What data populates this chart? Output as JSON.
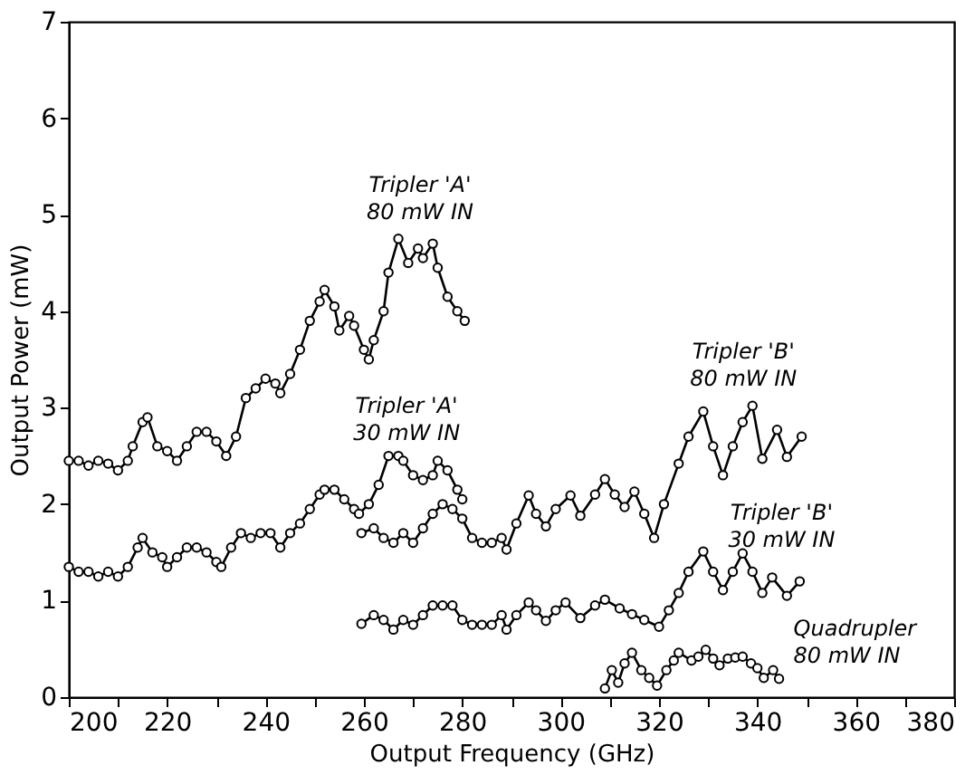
{
  "chart_data": {
    "type": "line",
    "xlabel": "Output Frequency (GHz)",
    "ylabel": "Output Power (mW)",
    "xlim": [
      200,
      380
    ],
    "ylim": [
      0,
      7
    ],
    "xticks": [
      200,
      {
        "value": 210,
        "label": null
      },
      220,
      {
        "value": 230,
        "label": null
      },
      240,
      {
        "value": 250,
        "label": null
      },
      260,
      {
        "value": 270,
        "label": null
      },
      280,
      {
        "value": 290,
        "label": null
      },
      300,
      {
        "value": 310,
        "label": null
      },
      320,
      {
        "value": 330,
        "label": null
      },
      340,
      {
        "value": 350,
        "label": null
      },
      360,
      {
        "value": 370,
        "label": null
      },
      380
    ],
    "yticks": [
      0,
      1,
      2,
      3,
      4,
      5,
      6,
      7
    ],
    "grid": false,
    "legend": false,
    "marker": "circle",
    "line_style": "solid",
    "series": [
      {
        "name": "Tripler 'A'\n80 mW IN",
        "color": "#000000",
        "x": [
          200,
          202,
          204,
          206,
          208,
          210,
          212,
          213,
          215,
          216,
          218,
          220,
          222,
          224,
          226,
          228,
          230,
          232,
          234,
          236,
          238,
          240,
          242,
          243,
          245,
          247,
          249,
          251,
          252,
          254,
          255,
          257,
          258,
          260,
          261,
          262,
          264,
          265,
          267,
          269,
          271,
          272,
          274,
          275,
          277,
          279,
          280.5
        ],
        "values": [
          2.45,
          2.45,
          2.4,
          2.45,
          2.42,
          2.35,
          2.45,
          2.6,
          2.85,
          2.9,
          2.6,
          2.55,
          2.45,
          2.6,
          2.75,
          2.75,
          2.65,
          2.5,
          2.7,
          3.1,
          3.2,
          3.3,
          3.25,
          3.15,
          3.35,
          3.6,
          3.9,
          4.1,
          4.22,
          4.05,
          3.8,
          3.95,
          3.85,
          3.6,
          3.5,
          3.7,
          4.0,
          4.4,
          4.75,
          4.5,
          4.65,
          4.55,
          4.7,
          4.45,
          4.15,
          4.0,
          3.9
        ]
      },
      {
        "name": "Tripler 'A'\n30 mW IN",
        "color": "#000000",
        "x": [
          200,
          202,
          204,
          206,
          208,
          210,
          212,
          214,
          215,
          217,
          219,
          220,
          222,
          224,
          226,
          228,
          230,
          231,
          233,
          235,
          237,
          239,
          241,
          243,
          245,
          247,
          249,
          251,
          252,
          254,
          256,
          258,
          259,
          261,
          263,
          265,
          267,
          268,
          270,
          272,
          274,
          275,
          277,
          279,
          280
        ],
        "values": [
          1.35,
          1.3,
          1.3,
          1.25,
          1.3,
          1.25,
          1.35,
          1.55,
          1.65,
          1.5,
          1.45,
          1.35,
          1.45,
          1.55,
          1.55,
          1.5,
          1.4,
          1.35,
          1.55,
          1.7,
          1.65,
          1.7,
          1.7,
          1.55,
          1.7,
          1.8,
          1.95,
          2.1,
          2.15,
          2.15,
          2.05,
          1.95,
          1.9,
          2.0,
          2.2,
          2.5,
          2.5,
          2.45,
          2.3,
          2.25,
          2.3,
          2.45,
          2.35,
          2.15,
          2.05
        ]
      },
      {
        "name": "Tripler 'B'\n80 mW IN",
        "color": "#000000",
        "x": [
          259.5,
          262,
          264,
          266,
          268,
          270,
          272,
          274,
          276,
          278,
          280,
          282,
          284,
          286,
          288,
          289,
          291,
          293.5,
          295,
          297,
          299,
          302,
          304,
          307,
          309,
          311,
          313,
          315,
          317,
          319,
          321,
          324,
          326,
          329,
          331,
          333,
          335,
          337,
          339,
          341,
          344,
          346,
          349
        ],
        "values": [
          1.7,
          1.75,
          1.65,
          1.6,
          1.7,
          1.6,
          1.75,
          1.9,
          2.0,
          1.95,
          1.85,
          1.65,
          1.6,
          1.6,
          1.65,
          1.53,
          1.8,
          2.09,
          1.9,
          1.77,
          1.95,
          2.09,
          1.88,
          2.1,
          2.26,
          2.1,
          1.97,
          2.13,
          1.9,
          1.65,
          2.0,
          2.42,
          2.7,
          2.96,
          2.6,
          2.3,
          2.6,
          2.85,
          3.02,
          2.47,
          2.77,
          2.49,
          2.7
        ]
      },
      {
        "name": "Tripler 'B'\n30 mW IN",
        "color": "#000000",
        "x": [
          259.5,
          262,
          264,
          266,
          268,
          270,
          272,
          274,
          276,
          278,
          280,
          282,
          284,
          286,
          288,
          289,
          291,
          293.5,
          295,
          297,
          299,
          301,
          304,
          307,
          309,
          312,
          314.5,
          317,
          320,
          322,
          324,
          326,
          329,
          331,
          333,
          335,
          337,
          339,
          341,
          343,
          346,
          348.6
        ],
        "values": [
          0.76,
          0.85,
          0.8,
          0.7,
          0.8,
          0.75,
          0.85,
          0.95,
          0.95,
          0.95,
          0.8,
          0.75,
          0.75,
          0.75,
          0.85,
          0.7,
          0.85,
          0.98,
          0.9,
          0.79,
          0.9,
          0.98,
          0.82,
          0.95,
          1.01,
          0.92,
          0.86,
          0.8,
          0.73,
          0.9,
          1.08,
          1.3,
          1.51,
          1.3,
          1.11,
          1.3,
          1.49,
          1.3,
          1.08,
          1.24,
          1.05,
          1.2
        ]
      },
      {
        "name": "Quadrupler\n80 mW IN",
        "color": "#000000",
        "x": [
          309,
          310.4,
          311.7,
          313,
          314.5,
          316.4,
          318,
          319.6,
          321.5,
          323,
          324,
          326.6,
          328,
          329.5,
          331,
          332.3,
          334,
          335.5,
          337,
          338.7,
          340,
          341.3,
          343.2,
          344.4
        ],
        "values": [
          0.09,
          0.28,
          0.15,
          0.35,
          0.46,
          0.28,
          0.2,
          0.12,
          0.28,
          0.38,
          0.46,
          0.38,
          0.42,
          0.49,
          0.4,
          0.33,
          0.4,
          0.41,
          0.42,
          0.35,
          0.3,
          0.2,
          0.28,
          0.19
        ]
      }
    ]
  }
}
